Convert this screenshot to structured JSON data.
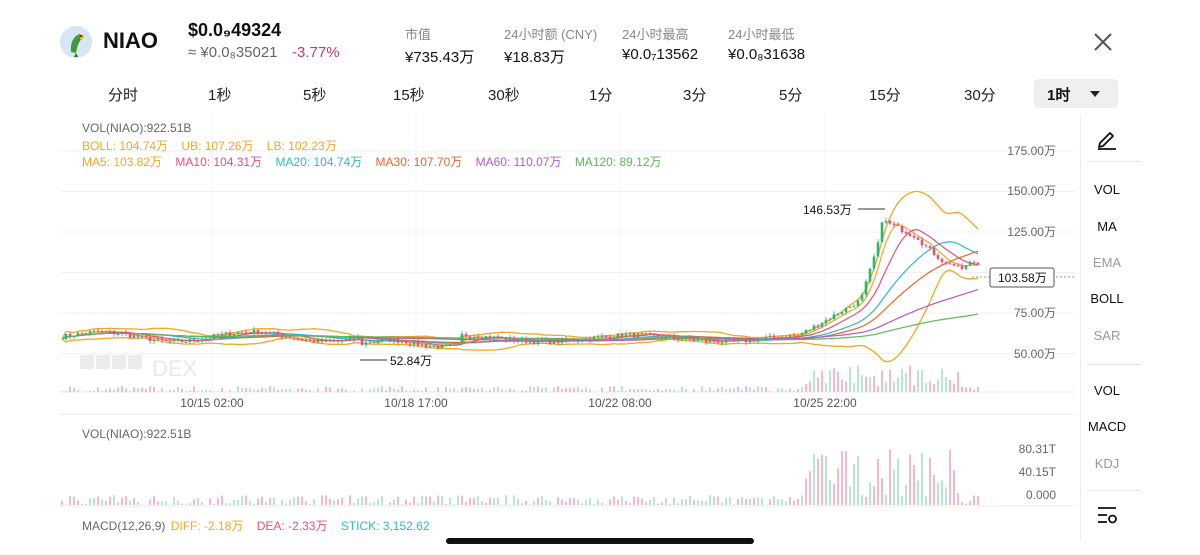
{
  "header": {
    "token_name": "NIAO",
    "price": "$0.0₉49324",
    "price_cny": "≈ ¥0.0₈35021",
    "change": "-3.77%",
    "stats": [
      {
        "label": "市值",
        "value": "¥735.43万"
      },
      {
        "label": "24小时额 (CNY)",
        "value": "¥18.83万"
      },
      {
        "label": "24小时最高",
        "value": "¥0.0₇13562"
      },
      {
        "label": "24小时最低",
        "value": "¥0.0₈31638"
      }
    ]
  },
  "tabs": [
    "分时",
    "1秒",
    "5秒",
    "15秒",
    "30秒",
    "1分",
    "3分",
    "5分",
    "15分",
    "30分"
  ],
  "active_tab": "1时",
  "main_legend": {
    "vol": "VOL(NIAO):922.51B",
    "boll": "BOLL: 104.74万",
    "ub": "UB: 107.26万",
    "lb": "LB: 102.23万",
    "ma5": "MA5: 103.82万",
    "ma10": "MA10: 104.31万",
    "ma20": "MA20: 104.74万",
    "ma30": "MA30: 107.70万",
    "ma60": "MA60: 110.07万",
    "ma120": "MA120: 89.12万"
  },
  "price_axis": [
    "175.00万",
    "150.00万",
    "125.00万",
    "100.00万",
    "75.00万",
    "50.00万"
  ],
  "price_axis_values": [
    175,
    150,
    125,
    100,
    75,
    50
  ],
  "high_label": "146.53万",
  "low_label": "52.84万",
  "current_price_label": "103.58万",
  "watermark": "DEX",
  "time_axis": [
    "10/15 02:00",
    "10/18 17:00",
    "10/22 08:00",
    "10/25 22:00"
  ],
  "volume_panel": {
    "legend": "VOL(NIAO):922.51B",
    "axis": [
      "80.31T",
      "40.15T",
      "0.000"
    ]
  },
  "macd_legend": {
    "name": "MACD(12,26,9)",
    "diff": "DIFF: -2.18万",
    "dea": "DEA: -2.33万",
    "stick": "STICK: 3,152.62"
  },
  "side_panel": {
    "main_items": [
      "VOL",
      "MA",
      "EMA",
      "BOLL",
      "SAR"
    ],
    "sub_items": [
      "VOL",
      "MACD",
      "KDJ"
    ]
  },
  "colors": {
    "up": "#2bb673",
    "down": "#e94f7a",
    "boll": "#f5a623",
    "ma5": "#f5a623",
    "ma10": "#e94f7a",
    "ma20": "#2fb6d6",
    "ma30": "#e8652e",
    "ma60": "#b25ac8",
    "ma120": "#5cb85c",
    "change_negative": "#c23a6a"
  }
}
